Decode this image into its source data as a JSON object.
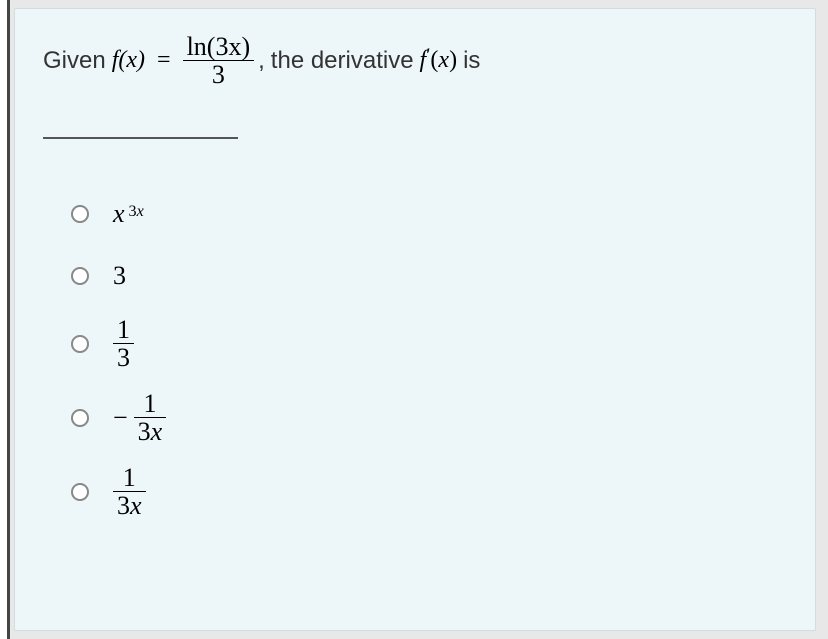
{
  "question": {
    "prefix": "Given",
    "fx": "f(x)",
    "equals": "=",
    "frac_num_ln": "ln",
    "frac_num_arg": "(3x)",
    "frac_den": "3",
    "comma": ",",
    "mid": "the derivative",
    "fprime": "f′(x)",
    "suffix": "is"
  },
  "options": [
    {
      "type": "pow",
      "base": "x",
      "exp_a": "3",
      "exp_b": "x"
    },
    {
      "type": "plain",
      "text": "3"
    },
    {
      "type": "frac",
      "neg": false,
      "num": "1",
      "den": "3"
    },
    {
      "type": "frac",
      "neg": true,
      "num": "1",
      "den_a": "3",
      "den_b": "x"
    },
    {
      "type": "frac",
      "neg": false,
      "num": "1",
      "den_a": "3",
      "den_b": "x"
    }
  ],
  "style": {
    "card_bg": "#edf6f9",
    "page_bg": "#e8e8e8"
  }
}
